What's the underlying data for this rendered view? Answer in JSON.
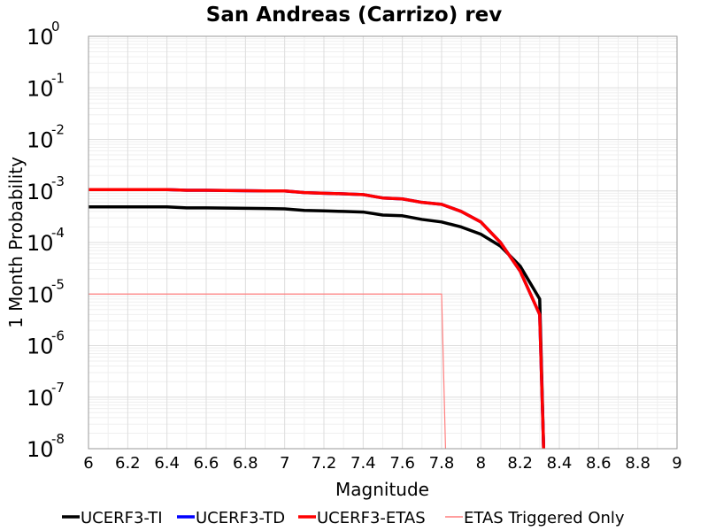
{
  "chart_data": {
    "type": "line",
    "title": "San Andreas (Carrizo) rev",
    "xlabel": "Magnitude",
    "ylabel": "1 Month Probability",
    "xlim": [
      6,
      9
    ],
    "ylim": [
      1e-08,
      1
    ],
    "yscale": "log",
    "grid": true,
    "legend_position": "bottom",
    "x_ticks": [
      "6",
      "6.2",
      "6.4",
      "6.6",
      "6.8",
      "7",
      "7.2",
      "7.4",
      "7.6",
      "7.8",
      "8",
      "8.2",
      "8.4",
      "8.6",
      "8.8",
      "9"
    ],
    "y_ticks": [
      {
        "base": "10",
        "exp": "0"
      },
      {
        "base": "10",
        "exp": "-1"
      },
      {
        "base": "10",
        "exp": "-2"
      },
      {
        "base": "10",
        "exp": "-3"
      },
      {
        "base": "10",
        "exp": "-4"
      },
      {
        "base": "10",
        "exp": "-5"
      },
      {
        "base": "10",
        "exp": "-6"
      },
      {
        "base": "10",
        "exp": "-7"
      },
      {
        "base": "10",
        "exp": "-8"
      }
    ],
    "series": [
      {
        "name": "UCERF3-TI",
        "color": "#000000",
        "step": false,
        "x": [
          6.0,
          6.1,
          6.2,
          6.3,
          6.4,
          6.5,
          6.6,
          6.7,
          6.8,
          6.9,
          7.0,
          7.1,
          7.2,
          7.3,
          7.4,
          7.5,
          7.6,
          7.7,
          7.8,
          7.9,
          8.0,
          8.1,
          8.2,
          8.3,
          8.32
        ],
        "y": [
          0.00049,
          0.00049,
          0.00049,
          0.00049,
          0.00049,
          0.00047,
          0.00047,
          0.000465,
          0.00046,
          0.000455,
          0.00045,
          0.00042,
          0.00041,
          0.0004,
          0.00039,
          0.00034,
          0.00033,
          0.00028,
          0.00025,
          0.0002,
          0.000145,
          8.5e-05,
          3.5e-05,
          8e-06,
          1e-08
        ]
      },
      {
        "name": "UCERF3-TD",
        "color": "#0000ff",
        "step": false,
        "x": [
          6.0,
          6.1,
          6.2,
          6.3,
          6.4,
          6.5,
          6.6,
          6.7,
          6.8,
          6.9,
          7.0,
          7.1,
          7.2,
          7.3,
          7.4,
          7.5,
          7.6,
          7.7,
          7.8,
          7.9,
          8.0,
          8.1,
          8.2,
          8.3,
          8.32
        ],
        "y": [
          0.00106,
          0.00106,
          0.00106,
          0.00106,
          0.00106,
          0.00103,
          0.00103,
          0.00102,
          0.00101,
          0.001,
          0.001,
          0.00093,
          0.0009,
          0.00088,
          0.00085,
          0.00073,
          0.0007,
          0.0006,
          0.00055,
          0.0004,
          0.00025,
          0.0001,
          2.8e-05,
          4e-06,
          1e-08
        ]
      },
      {
        "name": "UCERF3-ETAS",
        "color": "#ff0000",
        "step": false,
        "x": [
          6.0,
          6.1,
          6.2,
          6.3,
          6.4,
          6.5,
          6.6,
          6.7,
          6.8,
          6.9,
          7.0,
          7.1,
          7.2,
          7.3,
          7.4,
          7.5,
          7.6,
          7.7,
          7.8,
          7.9,
          8.0,
          8.1,
          8.2,
          8.3,
          8.32
        ],
        "y": [
          0.00106,
          0.00106,
          0.00106,
          0.00106,
          0.00106,
          0.00103,
          0.00103,
          0.00102,
          0.00101,
          0.001,
          0.001,
          0.00093,
          0.0009,
          0.00088,
          0.00085,
          0.00073,
          0.0007,
          0.0006,
          0.00055,
          0.0004,
          0.00025,
          0.0001,
          2.8e-05,
          4e-06,
          1e-08
        ]
      },
      {
        "name": "ETAS Triggered Only",
        "color": "#ff7f7f",
        "step": true,
        "x": [
          6.0,
          7.8,
          7.82
        ],
        "y": [
          1e-05,
          1e-05,
          1e-08
        ]
      }
    ]
  }
}
